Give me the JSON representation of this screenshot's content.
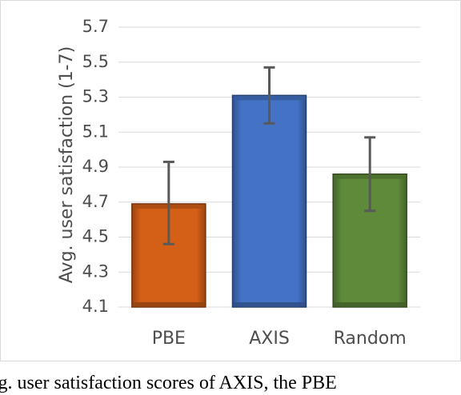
{
  "chart_data": {
    "type": "bar",
    "ylabel": "Avg. user satisfaction (1-7)",
    "xlabel": "",
    "ylim": [
      4.1,
      5.7
    ],
    "yticks": [
      "4.1",
      "4.3",
      "4.5",
      "4.7",
      "4.9",
      "5.1",
      "5.3",
      "5.5",
      "5.7"
    ],
    "grid": true,
    "legend": "none",
    "categories": [
      "PBE",
      "AXIS",
      "Random"
    ],
    "values": [
      4.69,
      5.31,
      4.86
    ],
    "error_low": [
      4.46,
      5.15,
      4.65
    ],
    "error_high": [
      4.93,
      5.47,
      5.07
    ],
    "colors": [
      "#d45f16",
      "#4472c4",
      "#5e8a3a"
    ]
  },
  "caption": {
    "text": "Avg. user satisfaction scores of AXIS, the PBE"
  }
}
